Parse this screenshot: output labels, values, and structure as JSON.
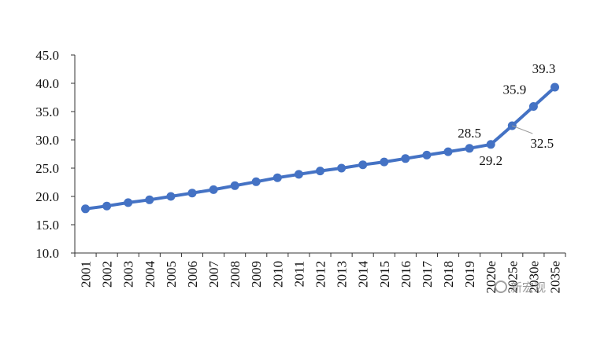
{
  "chart_data": {
    "type": "line",
    "title": "",
    "xlabel": "",
    "ylabel": "",
    "x": [
      "2001",
      "2002",
      "2003",
      "2004",
      "2005",
      "2006",
      "2007",
      "2008",
      "2009",
      "2010",
      "2011",
      "2012",
      "2013",
      "2014",
      "2015",
      "2016",
      "2017",
      "2018",
      "2019",
      "2020e",
      "2025e",
      "2030e",
      "2035e"
    ],
    "series": [
      {
        "name": "",
        "values": [
          17.8,
          18.3,
          18.9,
          19.4,
          20.0,
          20.6,
          21.2,
          21.9,
          22.6,
          23.3,
          23.9,
          24.5,
          25.0,
          25.6,
          26.1,
          26.7,
          27.3,
          27.9,
          28.5,
          29.2,
          32.5,
          35.9,
          39.3
        ]
      }
    ],
    "ylim": [
      10.0,
      45.0
    ],
    "yticks": [
      "10.0",
      "15.0",
      "20.0",
      "25.0",
      "30.0",
      "35.0",
      "40.0",
      "45.0"
    ],
    "data_labels": [
      {
        "index": 18,
        "text": "28.5"
      },
      {
        "index": 19,
        "text": "29.2"
      },
      {
        "index": 20,
        "text": "32.5"
      },
      {
        "index": 21,
        "text": "35.9"
      },
      {
        "index": 22,
        "text": "39.3"
      }
    ],
    "grid": false,
    "legend": "none",
    "colors": {
      "series": "#4472c4",
      "axis": "#333333",
      "text": "#111111",
      "leader": "#9e9e9e"
    }
  },
  "watermark": {
    "icon": "wechat-logo-icon",
    "text": "新宏观"
  }
}
